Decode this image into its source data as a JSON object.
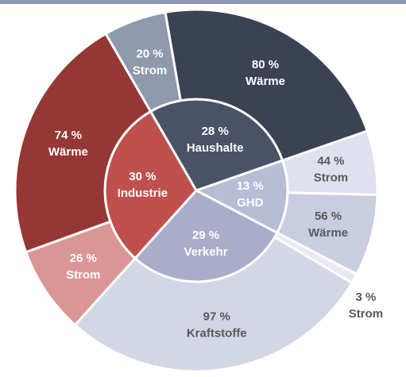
{
  "chart_data": {
    "type": "sunburst",
    "categories": [
      "Haushalte",
      "GHD",
      "Verkehr",
      "Industrie"
    ],
    "values": [
      28,
      13,
      29,
      30
    ],
    "value_labels": [
      "28 %",
      "13 %",
      "29 %",
      "30 %"
    ],
    "colors": [
      "#4a5366",
      "#b8bdd6",
      "#a9adc9",
      "#c0504d"
    ],
    "children": [
      {
        "categories": [
          "Strom",
          "Wärme"
        ],
        "values": [
          20,
          80
        ],
        "value_labels": [
          "20 %",
          "80 %"
        ],
        "colors": [
          "#8e99ab",
          "#3a4253"
        ]
      },
      {
        "categories": [
          "Strom",
          "Wärme"
        ],
        "values": [
          44,
          56
        ],
        "value_labels": [
          "44 %",
          "56 %"
        ],
        "colors": [
          "#dfe1ee",
          "#c9cde0"
        ]
      },
      {
        "categories": [
          "Strom",
          "Kraftstoffe"
        ],
        "values": [
          3,
          97
        ],
        "value_labels": [
          "3 %",
          "97 %"
        ],
        "colors": [
          "#e8e9f1",
          "#d3d6e5"
        ]
      },
      {
        "categories": [
          "Strom",
          "Wärme"
        ],
        "values": [
          26,
          74
        ],
        "value_labels": [
          "26 %",
          "74 %"
        ],
        "colors": [
          "#d99694",
          "#953735"
        ]
      }
    ]
  }
}
